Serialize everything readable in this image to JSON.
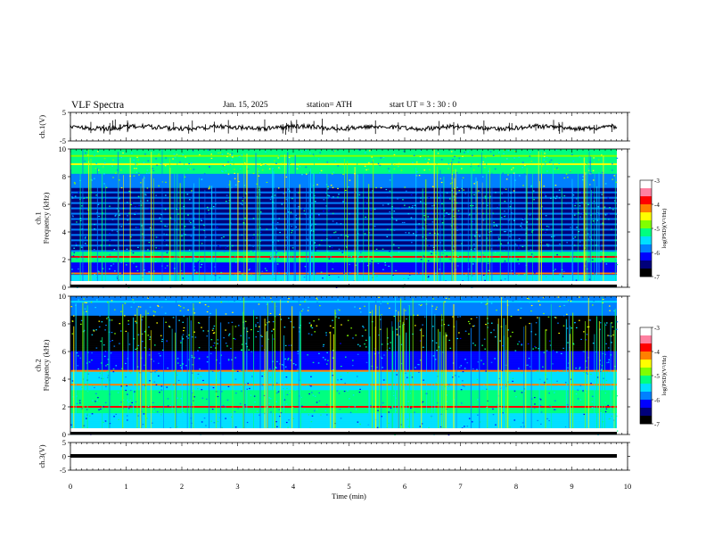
{
  "header": {
    "title": "VLF  Spectra",
    "date": "Jan. 15, 2025",
    "station": "station= ATH",
    "start": "start  UT  =   3  : 30 : 0"
  },
  "chart_data": [
    {
      "type": "line",
      "name": "ch1-waveform",
      "ylabel": "ch.1(V)",
      "ylim": [
        -5,
        5
      ],
      "yticks": [
        "5",
        "-5"
      ],
      "xlim": [
        0,
        10
      ],
      "note_level": 0
    },
    {
      "type": "heatmap",
      "name": "ch1-spectrogram",
      "ylabel": "ch.1\nFrequency  (kHz)",
      "ylim": [
        0,
        10
      ],
      "yticks": [
        "0",
        "2",
        "4",
        "6",
        "8",
        "10"
      ],
      "xlim": [
        0,
        9.8
      ],
      "colorbar": {
        "label": "log(PSD)(V²/Hz)",
        "range": [
          -7,
          -3
        ],
        "ticks": [
          "-3",
          "-4",
          "-5",
          "-6",
          "-7"
        ]
      }
    },
    {
      "type": "heatmap",
      "name": "ch2-spectrogram",
      "ylabel": "ch.2\nFrequency  (kHz)",
      "ylim": [
        0,
        10
      ],
      "yticks": [
        "0",
        "2",
        "4",
        "6",
        "8",
        "10"
      ],
      "xlim": [
        0,
        9.8
      ],
      "colorbar": {
        "label": "log(PSD)(V²/Hz)",
        "range": [
          -7,
          -3
        ],
        "ticks": [
          "-3",
          "-4",
          "-5",
          "-6",
          "-7"
        ]
      }
    },
    {
      "type": "line",
      "name": "ch3-waveform",
      "ylabel": "ch.3(V)",
      "ylim": [
        -5,
        5
      ],
      "yticks": [
        "5",
        "0",
        "-5"
      ],
      "xlim": [
        0,
        10
      ],
      "xlabel": "Time  (min)",
      "xticks": [
        "0",
        "1",
        "2",
        "3",
        "4",
        "5",
        "6",
        "7",
        "8",
        "9",
        "10"
      ]
    }
  ],
  "colors": {
    "palette": [
      "#000000",
      "#00007a",
      "#0000ff",
      "#0080ff",
      "#00e0ff",
      "#00ff80",
      "#80ff00",
      "#ffff00",
      "#ff8000",
      "#ff0000",
      "#ff80a0",
      "#ffffff"
    ]
  }
}
